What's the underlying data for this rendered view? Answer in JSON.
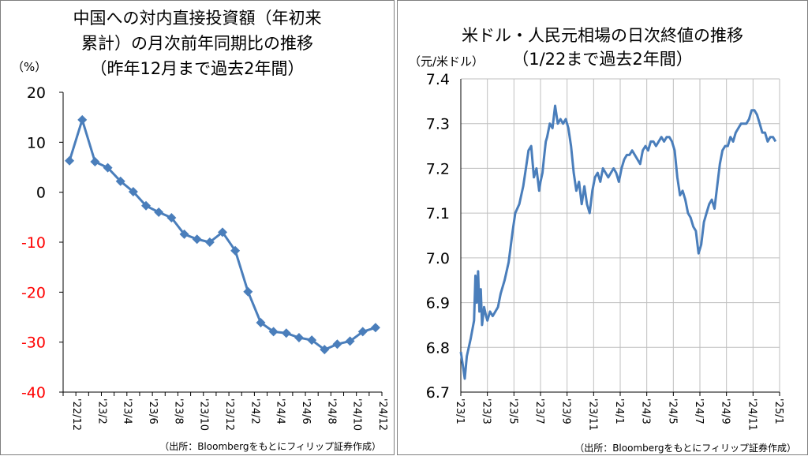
{
  "colors": {
    "line": "#4a7ebb",
    "negative_tick": "#ff0000",
    "grid": "#bfbfbf",
    "axis": "#000000"
  },
  "left": {
    "title_lines": [
      "中国への対内直接投資額（年初来",
      "累計）の月次前年同期比の推移",
      "（昨年12月まで過去2年間）"
    ],
    "unit": "（%）",
    "source": "（出所：Bloombergをもとにフィリップ証券作成）",
    "chart_data": {
      "type": "line",
      "title": "中国への対内直接投資額（年初来累計）の月次前年同期比の推移（昨年12月まで過去2年間）",
      "ylabel": "（%）",
      "ylim": [
        -40,
        20
      ],
      "yticks": [
        20,
        10,
        0,
        -10,
        -20,
        -30,
        -40
      ],
      "categories": [
        "'22/12",
        "'23/1",
        "'23/2",
        "'23/3",
        "'23/4",
        "'23/5",
        "'23/6",
        "'23/7",
        "'23/8",
        "'23/9",
        "'23/10",
        "'23/11",
        "'23/12",
        "'24/1",
        "'24/2",
        "'24/3",
        "'24/4",
        "'24/5",
        "'24/6",
        "'24/7",
        "'24/8",
        "'24/9",
        "'24/10",
        "'24/11",
        "'24/12"
      ],
      "tick_labels": [
        "'22/12",
        "'23/2",
        "'23/4",
        "'23/6",
        "'23/8",
        "'23/10",
        "'23/12",
        "'24/2",
        "'24/4",
        "'24/6",
        "'24/8",
        "'24/10",
        "'24/12"
      ],
      "values": [
        6.3,
        14.5,
        6.1,
        4.9,
        2.2,
        0.1,
        -2.7,
        -4.0,
        -5.1,
        -8.4,
        -9.4,
        -10.0,
        -8.0,
        -11.7,
        -19.9,
        -26.1,
        -27.9,
        -28.2,
        -29.1,
        -29.6,
        -31.5,
        -30.4,
        -29.8,
        -27.9,
        -27.1
      ],
      "grid": false,
      "legend": "none"
    }
  },
  "right": {
    "title_lines": [
      "米ドル・人民元相場の日次終値の推移",
      "（1/22まで過去2年間）"
    ],
    "unit": "（元/米ドル）",
    "source": "（出所：Bloombergをもとにフィリップ証券作成）",
    "chart_data": {
      "type": "line",
      "title": "米ドル・人民元相場の日次終値の推移（1/22まで過去2年間）",
      "ylabel": "（元/米ドル）",
      "ylim": [
        6.7,
        7.4
      ],
      "yticks": [
        "7.4",
        "7.3",
        "7.2",
        "7.1",
        "7.0",
        "6.9",
        "6.8",
        "6.7"
      ],
      "tick_labels": [
        "'23/1",
        "'23/3",
        "'23/5",
        "'23/7",
        "'23/9",
        "'23/11",
        "'24/1",
        "'24/3",
        "'24/5",
        "'24/7",
        "'24/9",
        "'24/11",
        "'25/1"
      ],
      "x_months": [
        0,
        0.1,
        0.2,
        0.3,
        0.45,
        0.6,
        0.75,
        1.0,
        1.1,
        1.2,
        1.3,
        1.4,
        1.5,
        1.6,
        1.75,
        1.9,
        2.0,
        2.2,
        2.4,
        2.6,
        2.8,
        3.0,
        3.3,
        3.6,
        3.9,
        4.1,
        4.4,
        4.7,
        4.9,
        5.1,
        5.3,
        5.5,
        5.7,
        5.9,
        6.0,
        6.15,
        6.25,
        6.4,
        6.5,
        6.7,
        6.9,
        7.1,
        7.3,
        7.5,
        7.7,
        7.9,
        8.1,
        8.3,
        8.5,
        8.7,
        8.9,
        9.1,
        9.3,
        9.5,
        9.7,
        9.9,
        10.1,
        10.3,
        10.5,
        10.7,
        10.9,
        11.1,
        11.3,
        11.5,
        11.7,
        11.9,
        12.1,
        12.3,
        12.5,
        12.7,
        12.9,
        13.1,
        13.3,
        13.5,
        13.7,
        13.9,
        14.1,
        14.3,
        14.5,
        14.7,
        14.9,
        15.1,
        15.3,
        15.5,
        15.7,
        15.9,
        16.1,
        16.3,
        16.5,
        16.7,
        16.9,
        17.1,
        17.3,
        17.5,
        17.7,
        17.9,
        18.1,
        18.3,
        18.5,
        18.7,
        18.9,
        19.1,
        19.3,
        19.5,
        19.7,
        19.9,
        20.1,
        20.3,
        20.5,
        20.7,
        20.9,
        21.1,
        21.3,
        21.5,
        21.7,
        21.9,
        22.1,
        22.3,
        22.5,
        22.7,
        22.9,
        23.1,
        23.3,
        23.5,
        23.7
      ],
      "values": [
        6.79,
        6.77,
        6.75,
        6.73,
        6.78,
        6.8,
        6.82,
        6.86,
        6.96,
        6.9,
        6.97,
        6.88,
        6.93,
        6.85,
        6.89,
        6.87,
        6.86,
        6.88,
        6.87,
        6.88,
        6.89,
        6.92,
        6.95,
        6.99,
        7.06,
        7.1,
        7.12,
        7.16,
        7.2,
        7.24,
        7.25,
        7.18,
        7.2,
        7.15,
        7.17,
        7.19,
        7.22,
        7.26,
        7.27,
        7.3,
        7.29,
        7.34,
        7.3,
        7.31,
        7.3,
        7.31,
        7.29,
        7.25,
        7.19,
        7.15,
        7.17,
        7.12,
        7.16,
        7.12,
        7.1,
        7.15,
        7.18,
        7.19,
        7.17,
        7.2,
        7.19,
        7.18,
        7.19,
        7.2,
        7.19,
        7.17,
        7.2,
        7.22,
        7.23,
        7.23,
        7.24,
        7.23,
        7.22,
        7.21,
        7.24,
        7.25,
        7.24,
        7.26,
        7.26,
        7.25,
        7.26,
        7.27,
        7.26,
        7.27,
        7.27,
        7.26,
        7.24,
        7.18,
        7.14,
        7.15,
        7.13,
        7.1,
        7.09,
        7.07,
        7.06,
        7.01,
        7.03,
        7.08,
        7.1,
        7.12,
        7.13,
        7.11,
        7.16,
        7.21,
        7.24,
        7.25,
        7.25,
        7.27,
        7.26,
        7.28,
        7.29,
        7.3,
        7.3,
        7.3,
        7.31,
        7.33,
        7.33,
        7.32,
        7.3,
        7.28,
        7.28,
        7.26,
        7.27,
        7.27,
        7.26,
        7.26
      ],
      "grid": true,
      "legend": "none"
    }
  }
}
